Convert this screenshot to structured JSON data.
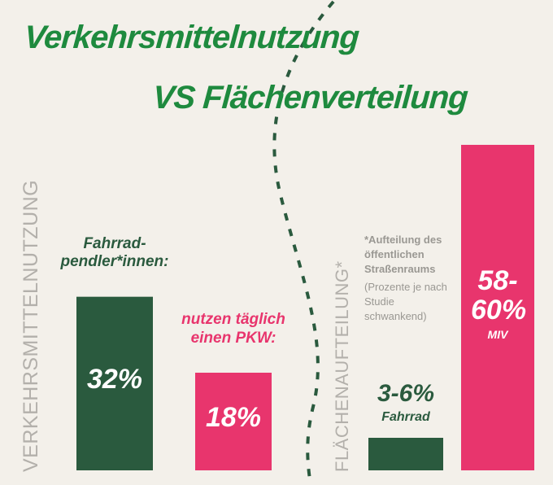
{
  "title": [
    "Verkehrsmittelnutzung",
    "VS Flächenverteilung"
  ],
  "chart_data": [
    {
      "type": "bar",
      "y_label": "VERKEHRSMITTELNUTZUNG",
      "categories": [
        "Fahrrad-pendler*innen:",
        "nutzen täglich einen PKW:"
      ],
      "values": [
        32,
        18
      ],
      "value_labels": [
        "32%",
        "18%"
      ],
      "colors": [
        "#2a5a3e",
        "#e8356d"
      ],
      "ylim": [
        0,
        60
      ]
    },
    {
      "type": "range_bar",
      "y_label": "FLÄCHENAUFTEILUNG*",
      "note": [
        "*Aufteilung des öffentlichen Straßenraums",
        "(Prozente je nach Studie schwankend)"
      ],
      "categories": [
        "Fahrrad",
        "MIV"
      ],
      "low": [
        3,
        58
      ],
      "high": [
        6,
        60
      ],
      "value_labels": [
        "3-6%",
        "58-60%"
      ],
      "colors": [
        "#2a5a3e",
        "#e8356d"
      ],
      "ylim": [
        0,
        60
      ]
    }
  ]
}
